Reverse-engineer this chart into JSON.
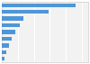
{
  "values": [
    230,
    145,
    68,
    55,
    42,
    32,
    22,
    14,
    8
  ],
  "bar_color": "#4f96d8",
  "background_color": "#ffffff",
  "plot_bg_color": "#f2f2f2",
  "grid_color": "#ffffff",
  "border_color": "#cccccc",
  "xlim": [
    0,
    270
  ],
  "figsize": [
    1.0,
    0.71
  ],
  "dpi": 100
}
